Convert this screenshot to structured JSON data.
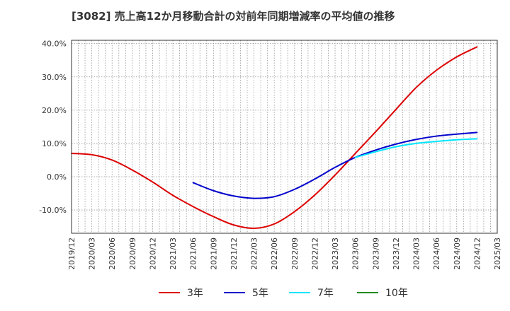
{
  "chart_data": {
    "type": "line",
    "title": "[3082]  売上高12か月移動合計の対前年同期増減率の平均値の推移",
    "xlabel": "",
    "ylabel": "",
    "ylim": [
      -17.0,
      41.0
    ],
    "y_ticks": [
      40,
      30,
      20,
      10,
      0,
      -10
    ],
    "y_tick_labels": [
      "40.0%",
      "30.0%",
      "20.0%",
      "10.0%",
      "0.0%",
      "-10.0%"
    ],
    "x_range": [
      "2019/12",
      "2025/03"
    ],
    "x_tick_labels": [
      "2019/12",
      "2020/03",
      "2020/06",
      "2020/09",
      "2020/12",
      "2021/03",
      "2021/06",
      "2021/09",
      "2021/12",
      "2022/03",
      "2022/06",
      "2022/09",
      "2022/12",
      "2023/03",
      "2023/06",
      "2023/09",
      "2023/12",
      "2024/03",
      "2024/06",
      "2024/09",
      "2024/12",
      "2025/03"
    ],
    "grid": true,
    "legend_position": "bottom",
    "series": [
      {
        "name": "3年",
        "color": "#dd0000",
        "points": [
          [
            "2019/12",
            7.0
          ],
          [
            "2020/03",
            6.6
          ],
          [
            "2020/06",
            5.0
          ],
          [
            "2020/09",
            2.0
          ],
          [
            "2020/12",
            -1.6
          ],
          [
            "2021/03",
            -5.6
          ],
          [
            "2021/06",
            -9.0
          ],
          [
            "2021/09",
            -12.0
          ],
          [
            "2021/12",
            -14.5
          ],
          [
            "2022/03",
            -15.5
          ],
          [
            "2022/06",
            -14.2
          ],
          [
            "2022/09",
            -10.5
          ],
          [
            "2022/12",
            -5.5
          ],
          [
            "2023/03",
            0.5
          ],
          [
            "2023/06",
            7.0
          ],
          [
            "2023/09",
            13.5
          ],
          [
            "2023/12",
            20.2
          ],
          [
            "2024/03",
            26.8
          ],
          [
            "2024/06",
            32.0
          ],
          [
            "2024/09",
            36.0
          ],
          [
            "2024/12",
            39.0
          ]
        ]
      },
      {
        "name": "5年",
        "color": "#0000cc",
        "points": [
          [
            "2021/06",
            -1.8
          ],
          [
            "2021/09",
            -4.2
          ],
          [
            "2021/12",
            -5.8
          ],
          [
            "2022/03",
            -6.5
          ],
          [
            "2022/06",
            -6.0
          ],
          [
            "2022/09",
            -3.8
          ],
          [
            "2022/12",
            -0.7
          ],
          [
            "2023/03",
            2.8
          ],
          [
            "2023/06",
            5.8
          ],
          [
            "2023/09",
            8.0
          ],
          [
            "2023/12",
            9.8
          ],
          [
            "2024/03",
            11.2
          ],
          [
            "2024/06",
            12.2
          ],
          [
            "2024/09",
            12.8
          ],
          [
            "2024/12",
            13.3
          ]
        ]
      },
      {
        "name": "7年",
        "color": "#00e5ff",
        "points": [
          [
            "2023/06",
            5.8
          ],
          [
            "2023/09",
            7.5
          ],
          [
            "2023/12",
            9.0
          ],
          [
            "2024/03",
            10.0
          ],
          [
            "2024/06",
            10.6
          ],
          [
            "2024/09",
            11.1
          ],
          [
            "2024/12",
            11.4
          ]
        ]
      },
      {
        "name": "10年",
        "color": "#228b22",
        "points": []
      }
    ]
  }
}
